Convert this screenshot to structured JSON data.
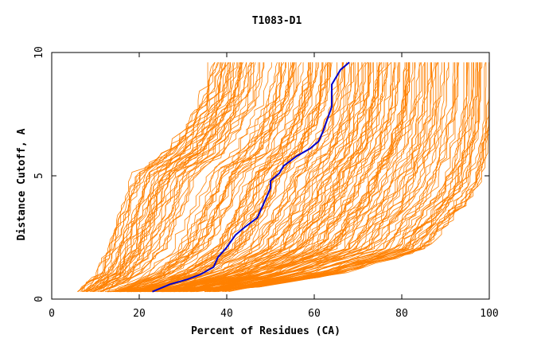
{
  "chart_data": {
    "type": "line",
    "title": "T1083-D1",
    "xlabel": "Percent of Residues (CA)",
    "ylabel": "Distance Cutoff, A",
    "xlim": [
      0,
      100
    ],
    "ylim": [
      0,
      10
    ],
    "x_ticks": [
      "0",
      "20",
      "40",
      "60",
      "80",
      "100"
    ],
    "y_ticks": [
      "0",
      "5",
      "10"
    ],
    "grid": false,
    "colors": {
      "background_curves": "#ff8000",
      "highlight": "#0000cc",
      "axis": "#000000"
    },
    "background_series_envelope": {
      "description": "many orange cumulative GDT curves",
      "y": [
        0.3,
        1,
        2,
        3,
        4,
        5,
        6,
        7,
        8,
        9.5
      ],
      "x_min": [
        6,
        10,
        12,
        14,
        16,
        18,
        26,
        30,
        34,
        36
      ],
      "x_max": [
        40,
        65,
        85,
        90,
        95,
        98,
        99,
        100,
        100,
        100
      ]
    },
    "series": [
      {
        "highlight": true,
        "x": [
          23,
          27,
          31,
          34,
          37,
          38,
          40,
          42,
          44,
          47,
          48,
          49,
          50,
          50,
          52,
          53,
          56,
          59,
          61,
          62,
          63,
          64,
          64,
          64,
          65,
          66,
          68
        ],
        "y": [
          0.3,
          0.6,
          0.8,
          1.0,
          1.3,
          1.7,
          2.1,
          2.6,
          2.9,
          3.3,
          3.7,
          4.1,
          4.5,
          4.8,
          5.1,
          5.4,
          5.8,
          6.1,
          6.4,
          6.8,
          7.3,
          7.8,
          8.2,
          8.7,
          9.0,
          9.3,
          9.6
        ]
      }
    ]
  }
}
